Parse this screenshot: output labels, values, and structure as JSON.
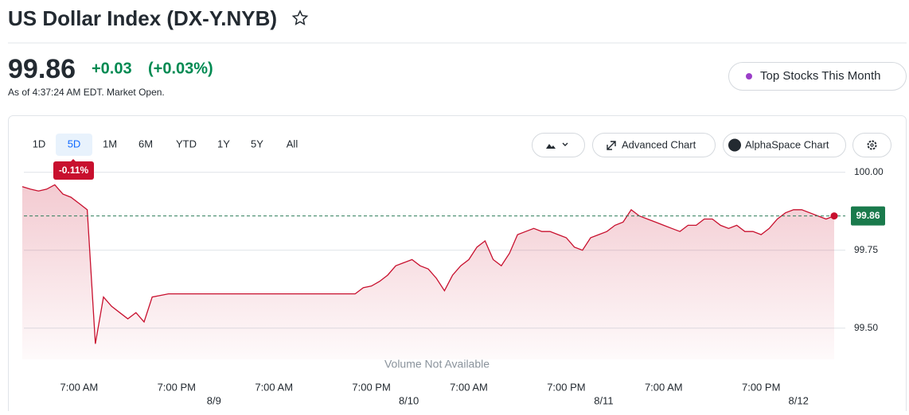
{
  "header": {
    "title": "US Dollar Index (DX-Y.NYB)"
  },
  "quote": {
    "price": "99.86",
    "change": "+0.03",
    "change_percent": "(+0.03%)",
    "as_of": "As of 4:37:24 AM EDT. Market Open."
  },
  "promo_button": "Top Stocks This Month",
  "ranges": [
    "1D",
    "5D",
    "1M",
    "6M",
    "YTD",
    "1Y",
    "5Y",
    "All"
  ],
  "active_range": 1,
  "tools": [
    "Advanced Chart",
    "AlphaSpace Chart"
  ],
  "chart_data": {
    "type": "line",
    "period_change_badge": "-0.11%",
    "note": "Volume Not Available",
    "color": "#c8102e",
    "ylim": [
      99.4,
      100.04
    ],
    "yticks": [
      {
        "value": 99.5,
        "label": "99.50"
      },
      99.75,
      {
        "value": 100,
        "label": "100.00"
      }
    ],
    "grid": true,
    "reference_line": 99.86,
    "categories": [
      null,
      null,
      null,
      null,
      null,
      null,
      null,
      "7:00 AM",
      null,
      null,
      null,
      null,
      null,
      null,
      null,
      null,
      null,
      null,
      null,
      "7:00 PM",
      null,
      null,
      null,
      null,
      null,
      null,
      null,
      null,
      null,
      null,
      null,
      "7:00 AM",
      null,
      null,
      null,
      null,
      null,
      null,
      null,
      null,
      null,
      null,
      null,
      "7:00 PM",
      null,
      null,
      null,
      null,
      null,
      null,
      null,
      null,
      null,
      null,
      null,
      "7:00 AM",
      null,
      null,
      null,
      null,
      null,
      null,
      null,
      null,
      null,
      null,
      null,
      "7:00 PM",
      null,
      null,
      null,
      null,
      null,
      null,
      null,
      null,
      null,
      null,
      null,
      "7:00 AM",
      null,
      null,
      null,
      null,
      null,
      null,
      null,
      null,
      null,
      null,
      null,
      "7:00 PM",
      null,
      null,
      null,
      null,
      null,
      null,
      null,
      null,
      null
    ],
    "dates": [
      null,
      null,
      null,
      null,
      null,
      null,
      null,
      null,
      null,
      null,
      null,
      null,
      null,
      null,
      null,
      null,
      null,
      null,
      null,
      null,
      null,
      null,
      null,
      null,
      "8/9",
      null,
      null,
      null,
      null,
      null,
      null,
      null,
      null,
      null,
      null,
      null,
      null,
      null,
      null,
      null,
      null,
      null,
      null,
      null,
      null,
      null,
      null,
      null,
      "8/10",
      null,
      null,
      null,
      null,
      null,
      null,
      null,
      null,
      null,
      null,
      null,
      null,
      null,
      null,
      null,
      null,
      null,
      null,
      null,
      null,
      null,
      null,
      null,
      "8/11",
      null,
      null,
      null,
      null,
      null,
      null,
      null,
      null,
      null,
      null,
      null,
      null,
      null,
      null,
      null,
      null,
      null,
      null,
      null,
      null,
      null,
      null,
      null,
      "8/12",
      null,
      null,
      null,
      null
    ],
    "values": [
      99.954,
      99.946,
      99.94,
      99.946,
      99.96,
      99.93,
      99.92,
      99.9,
      99.88,
      99.45,
      99.6,
      99.57,
      99.55,
      99.53,
      99.55,
      99.52,
      99.6,
      99.605,
      99.61,
      99.61,
      99.61,
      99.61,
      99.61,
      99.61,
      99.61,
      99.61,
      99.61,
      99.61,
      99.61,
      99.61,
      99.61,
      99.61,
      99.61,
      99.61,
      99.61,
      99.61,
      99.61,
      99.61,
      99.61,
      99.61,
      99.61,
      99.61,
      99.63,
      99.635,
      99.65,
      99.67,
      99.7,
      99.71,
      99.72,
      99.7,
      99.69,
      99.66,
      99.62,
      99.67,
      99.7,
      99.72,
      99.76,
      99.78,
      99.72,
      99.7,
      99.74,
      99.8,
      99.81,
      99.82,
      99.81,
      99.81,
      99.8,
      99.79,
      99.76,
      99.75,
      99.79,
      99.8,
      99.81,
      99.83,
      99.84,
      99.88,
      99.86,
      99.85,
      99.84,
      99.83,
      99.82,
      99.81,
      99.83,
      99.83,
      99.85,
      99.85,
      99.83,
      99.82,
      99.83,
      99.81,
      99.81,
      99.8,
      99.82,
      99.85,
      99.87,
      99.88,
      99.88,
      99.87,
      99.86,
      99.85,
      99.86
    ]
  }
}
